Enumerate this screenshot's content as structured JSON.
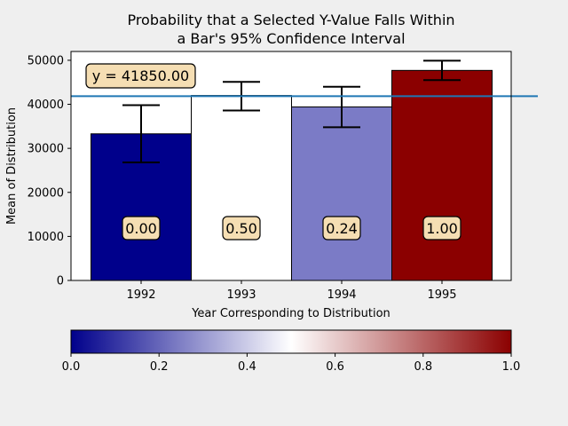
{
  "chart_data": {
    "type": "bar",
    "title_lines": [
      "Probability that a Selected Y-Value Falls Within",
      "a Bar's 95% Confidence Interval"
    ],
    "xlabel": "Year Corresponding to Distribution",
    "ylabel": "Mean of Distribution",
    "categories": [
      "1992",
      "1993",
      "1994",
      "1995"
    ],
    "values": [
      33300,
      42000,
      39400,
      47700
    ],
    "error_low": [
      26800,
      38600,
      34800,
      45500
    ],
    "error_high": [
      39800,
      45100,
      44000,
      49900
    ],
    "probabilities": [
      "0.00",
      "0.50",
      "0.24",
      "1.00"
    ],
    "probability_values": [
      0.0,
      0.5,
      0.24,
      1.0
    ],
    "bar_colors": [
      "#00008b",
      "#ffffff",
      "#7b7bc6",
      "#8b0000"
    ],
    "ylim": [
      0,
      52000
    ],
    "yticks": [
      0,
      10000,
      20000,
      30000,
      40000,
      50000
    ],
    "ytick_labels": [
      "0",
      "10000",
      "20000",
      "30000",
      "40000",
      "50000"
    ],
    "reference_line": {
      "y": 41850,
      "label": "y = 41850.00",
      "color": "#1f77b4"
    },
    "grid": false,
    "colorbar": {
      "colormap": "seismic",
      "range": [
        0.0,
        1.0
      ],
      "ticks": [
        0.0,
        0.2,
        0.4,
        0.6,
        0.8,
        1.0
      ],
      "tick_labels": [
        "0.0",
        "0.2",
        "0.4",
        "0.6",
        "0.8",
        "1.0"
      ],
      "stops": [
        "#00008b",
        "#ffffff",
        "#8b0000"
      ]
    },
    "label_box_color": "#f5deb3"
  }
}
